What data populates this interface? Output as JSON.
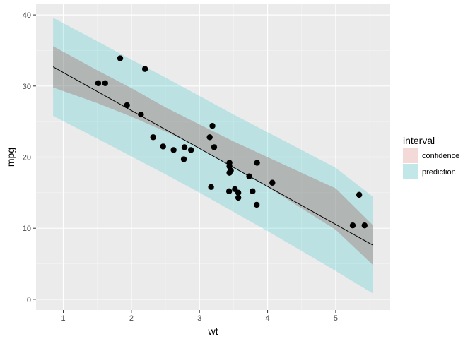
{
  "chart_data": {
    "type": "scatter",
    "xlabel": "wt",
    "ylabel": "mpg",
    "xlim": [
      0.6,
      5.8
    ],
    "ylim": [
      -1.5,
      41.5
    ],
    "x_ticks": [
      1,
      2,
      3,
      4,
      5
    ],
    "y_ticks": [
      0,
      10,
      20,
      30,
      40
    ],
    "x_tick_labels": [
      "1",
      "2",
      "3",
      "4",
      "5"
    ],
    "y_tick_labels": [
      "0",
      "10",
      "20",
      "30",
      "40"
    ],
    "grid": true,
    "background": "#ebebeb",
    "points": [
      {
        "x": 2.62,
        "y": 21.0
      },
      {
        "x": 2.875,
        "y": 21.0
      },
      {
        "x": 2.32,
        "y": 22.8
      },
      {
        "x": 3.215,
        "y": 21.4
      },
      {
        "x": 3.44,
        "y": 18.7
      },
      {
        "x": 3.46,
        "y": 18.1
      },
      {
        "x": 3.57,
        "y": 14.3
      },
      {
        "x": 3.19,
        "y": 24.4
      },
      {
        "x": 3.15,
        "y": 22.8
      },
      {
        "x": 3.44,
        "y": 19.2
      },
      {
        "x": 3.44,
        "y": 17.8
      },
      {
        "x": 4.07,
        "y": 16.4
      },
      {
        "x": 3.73,
        "y": 17.3
      },
      {
        "x": 3.78,
        "y": 15.2
      },
      {
        "x": 5.25,
        "y": 10.4
      },
      {
        "x": 5.424,
        "y": 10.4
      },
      {
        "x": 5.345,
        "y": 14.7
      },
      {
        "x": 2.2,
        "y": 32.4
      },
      {
        "x": 1.615,
        "y": 30.4
      },
      {
        "x": 1.835,
        "y": 33.9
      },
      {
        "x": 2.465,
        "y": 21.5
      },
      {
        "x": 3.52,
        "y": 15.5
      },
      {
        "x": 3.435,
        "y": 15.2
      },
      {
        "x": 3.84,
        "y": 13.3
      },
      {
        "x": 3.845,
        "y": 19.2
      },
      {
        "x": 1.935,
        "y": 27.3
      },
      {
        "x": 2.14,
        "y": 26.0
      },
      {
        "x": 1.513,
        "y": 30.4
      },
      {
        "x": 3.17,
        "y": 15.8
      },
      {
        "x": 2.77,
        "y": 19.7
      },
      {
        "x": 3.57,
        "y": 15.0
      },
      {
        "x": 2.78,
        "y": 21.4
      }
    ],
    "fit_line": {
      "x": [
        0.85,
        5.55
      ],
      "y": [
        32.7,
        7.6
      ]
    },
    "bands": [
      {
        "name": "prediction",
        "color": "#00bfc4",
        "opacity": 0.2,
        "x": [
          0.85,
          1.5,
          2.0,
          2.5,
          3.0,
          3.5,
          4.0,
          4.5,
          5.0,
          5.55
        ],
        "lower": [
          25.8,
          22.6,
          20.1,
          17.6,
          15.0,
          12.3,
          9.6,
          6.8,
          4.0,
          0.8
        ],
        "upper": [
          39.6,
          36.3,
          33.7,
          31.2,
          28.6,
          26.0,
          23.5,
          21.0,
          18.5,
          14.4
        ]
      },
      {
        "name": "confidence",
        "color": "#f8766d",
        "opacity": 0.2,
        "x": [
          0.85,
          1.5,
          2.0,
          2.5,
          3.0,
          3.5,
          4.0,
          4.5,
          5.0,
          5.55
        ],
        "lower": [
          29.8,
          27.6,
          25.7,
          23.6,
          21.3,
          18.6,
          15.8,
          12.8,
          9.8,
          4.8
        ],
        "upper": [
          35.6,
          32.2,
          29.7,
          27.0,
          24.6,
          22.2,
          20.0,
          17.8,
          15.6,
          10.4
        ]
      }
    ],
    "legend": {
      "title": "interval",
      "position": "right",
      "entries": [
        {
          "label": "confidence",
          "color": "#f8766d"
        },
        {
          "label": "prediction",
          "color": "#00bfc4"
        }
      ]
    }
  }
}
